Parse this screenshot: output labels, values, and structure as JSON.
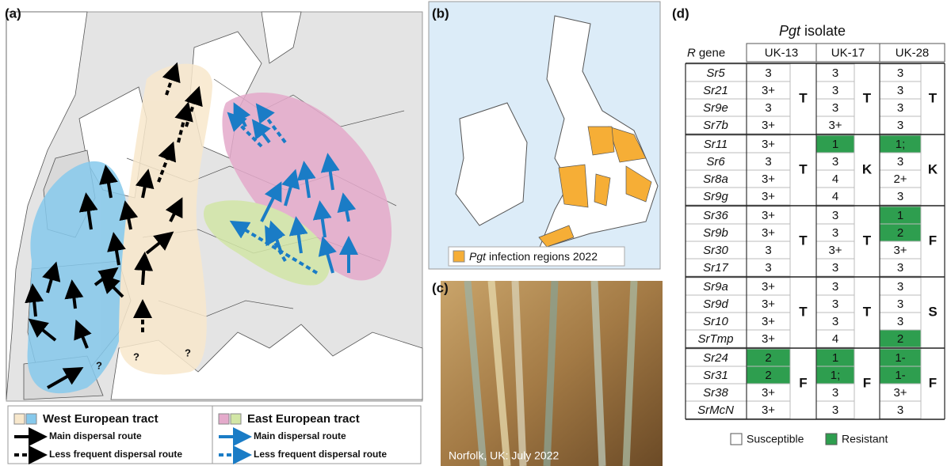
{
  "panels": {
    "a": {
      "label": "(a)",
      "unknown_marks": [
        "?",
        "?",
        "?"
      ],
      "legend": {
        "west": {
          "title": "West European tract",
          "colors": [
            "#f8e8cc",
            "#86c9ec"
          ],
          "arrow_color": "#000000",
          "main": "Main dispersal route",
          "less": "Less frequent dispersal route"
        },
        "east": {
          "title": "East European tract",
          "colors": [
            "#e4aacb",
            "#d2e6a6"
          ],
          "arrow_color": "#1a7cc6",
          "main": "Main dispersal route",
          "less": "Less frequent dispersal route"
        }
      }
    },
    "b": {
      "label": "(b)",
      "legend": {
        "italic": "Pgt",
        "text": "infection regions 2022",
        "color": "#f6ae36"
      }
    },
    "c": {
      "label": "(c)",
      "caption": "Norfolk, UK: July 2022"
    },
    "d": {
      "label": "(d)",
      "title": {
        "italic": "Pgt",
        "text": "isolate"
      },
      "row_header": {
        "italic": "R",
        "text": "gene"
      },
      "columns": [
        "UK-13",
        "UK-17",
        "UK-28"
      ],
      "resistant_color": "#2e9e4f",
      "groups": [
        {
          "genes": [
            "Sr5",
            "Sr21",
            "Sr9e",
            "Sr7b"
          ],
          "scores": [
            [
              "3",
              "3+",
              "3",
              "3+"
            ],
            [
              "3",
              "3",
              "3",
              "3+"
            ],
            [
              "3",
              "3",
              "3",
              "3"
            ]
          ],
          "resistant": [
            [
              false,
              false,
              false,
              false
            ],
            [
              false,
              false,
              false,
              false
            ],
            [
              false,
              false,
              false,
              false
            ]
          ],
          "phenotypes": [
            "T",
            "T",
            "T"
          ]
        },
        {
          "genes": [
            "Sr11",
            "Sr6",
            "Sr8a",
            "Sr9g"
          ],
          "scores": [
            [
              "3+",
              "3",
              "3+",
              "3+"
            ],
            [
              "1",
              "3",
              "4",
              "4"
            ],
            [
              "1;",
              "3",
              "2+",
              "3"
            ]
          ],
          "resistant": [
            [
              false,
              false,
              false,
              false
            ],
            [
              true,
              false,
              false,
              false
            ],
            [
              true,
              false,
              false,
              false
            ]
          ],
          "phenotypes": [
            "T",
            "K",
            "K"
          ]
        },
        {
          "genes": [
            "Sr36",
            "Sr9b",
            "Sr30",
            "Sr17"
          ],
          "scores": [
            [
              "3+",
              "3+",
              "3",
              "3"
            ],
            [
              "3",
              "3",
              "3+",
              "3"
            ],
            [
              "1",
              "2",
              "3+",
              "3"
            ]
          ],
          "resistant": [
            [
              false,
              false,
              false,
              false
            ],
            [
              false,
              false,
              false,
              false
            ],
            [
              true,
              true,
              false,
              false
            ]
          ],
          "phenotypes": [
            "T",
            "T",
            "F"
          ]
        },
        {
          "genes": [
            "Sr9a",
            "Sr9d",
            "Sr10",
            "SrTmp"
          ],
          "scores": [
            [
              "3+",
              "3+",
              "3+",
              "3+"
            ],
            [
              "3",
              "3",
              "3",
              "4"
            ],
            [
              "3",
              "3",
              "3",
              "2"
            ]
          ],
          "resistant": [
            [
              false,
              false,
              false,
              false
            ],
            [
              false,
              false,
              false,
              false
            ],
            [
              false,
              false,
              false,
              true
            ]
          ],
          "phenotypes": [
            "T",
            "T",
            "S"
          ]
        },
        {
          "genes": [
            "Sr24",
            "Sr31",
            "Sr38",
            "SrMcN"
          ],
          "scores": [
            [
              "2",
              "2",
              "3+",
              "3+"
            ],
            [
              "1",
              "1;",
              "3",
              "3"
            ],
            [
              "1-",
              "1-",
              "3+",
              "3"
            ]
          ],
          "resistant": [
            [
              true,
              true,
              false,
              false
            ],
            [
              true,
              true,
              false,
              false
            ],
            [
              true,
              true,
              false,
              false
            ]
          ],
          "phenotypes": [
            "F",
            "F",
            "F"
          ]
        }
      ],
      "legend": {
        "susceptible": "Susceptible",
        "resistant": "Resistant"
      }
    }
  }
}
